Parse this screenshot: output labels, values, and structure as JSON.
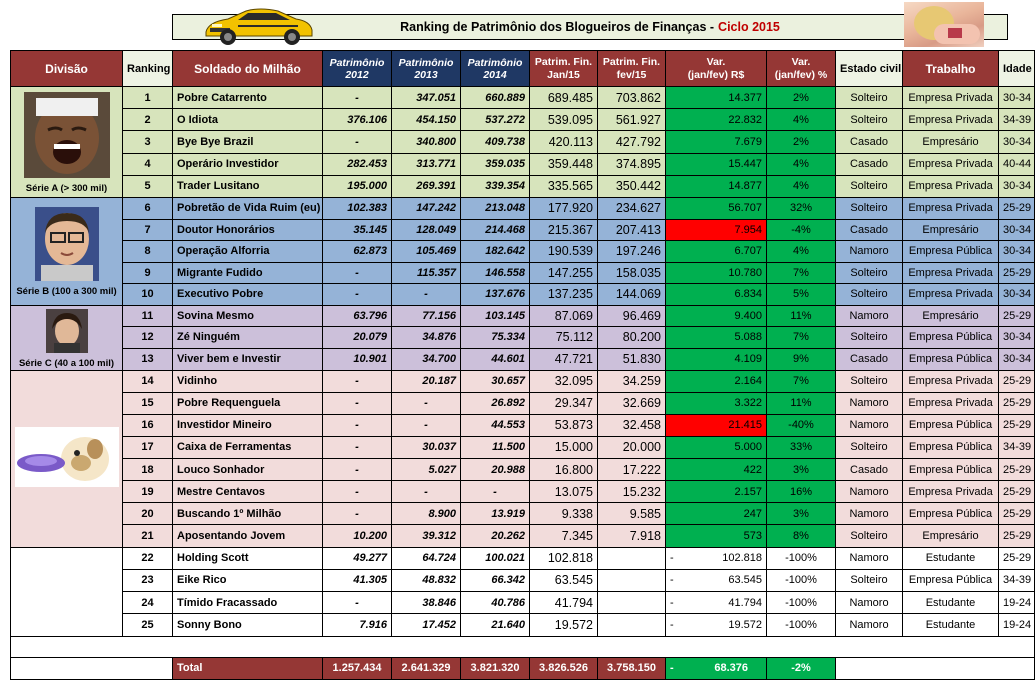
{
  "title": {
    "main": "Ranking de Patrimônio dos Blogueiros de Finanças -",
    "accent": "Ciclo 2015"
  },
  "images": {
    "car": "yellow-sports-car",
    "woman": "woman-photo"
  },
  "headers": {
    "divisao": "Divisão",
    "ranking": "Ranking",
    "soldado": "Soldado do Milhão",
    "p2012a": "Patrimônio",
    "p2012b": "2012",
    "p2013a": "Patrimônio",
    "p2013b": "2013",
    "p2014a": "Patrimônio",
    "p2014b": "2014",
    "janA": "Patrim. Fin.",
    "janB": "Jan/15",
    "fevA": "Patrim. Fin.",
    "fevB": "fev/15",
    "varRA": "Var.",
    "varRB": "(jan/fev) R$",
    "varPA": "Var.",
    "varPB": "(jan/fev) %",
    "estado": "Estado civil",
    "trabalho": "Trabalho",
    "idade": "Idade"
  },
  "divisions": {
    "a": "Série A (> 300 mil)",
    "b": "Série B (100 a 300 mil)",
    "c": "Série C (40 a 100 mil)",
    "d": "",
    "e": ""
  },
  "rows": [
    {
      "rank": "1",
      "name": "Pobre Catarrento",
      "p12": "-",
      "p13": "347.051",
      "p14": "660.889",
      "jan": "689.485",
      "fev": "703.862",
      "vr": "14.377",
      "vp": "2%",
      "civil": "Solteiro",
      "job": "Empresa Privada",
      "age": "30-34"
    },
    {
      "rank": "2",
      "name": "O Idiota",
      "p12": "376.106",
      "p13": "454.150",
      "p14": "537.272",
      "jan": "539.095",
      "fev": "561.927",
      "vr": "22.832",
      "vp": "4%",
      "civil": "Solteiro",
      "job": "Empresa Privada",
      "age": "34-39"
    },
    {
      "rank": "3",
      "name": "Bye Bye Brazil",
      "p12": "-",
      "p13": "340.800",
      "p14": "409.738",
      "jan": "420.113",
      "fev": "427.792",
      "vr": "7.679",
      "vp": "2%",
      "civil": "Casado",
      "job": "Empresário",
      "age": "30-34"
    },
    {
      "rank": "4",
      "name": "Operário Investidor",
      "p12": "282.453",
      "p13": "313.771",
      "p14": "359.035",
      "jan": "359.448",
      "fev": "374.895",
      "vr": "15.447",
      "vp": "4%",
      "civil": "Casado",
      "job": "Empresa Privada",
      "age": "40-44"
    },
    {
      "rank": "5",
      "name": "Trader Lusitano",
      "p12": "195.000",
      "p13": "269.391",
      "p14": "339.354",
      "jan": "335.565",
      "fev": "350.442",
      "vr": "14.877",
      "vp": "4%",
      "civil": "Solteiro",
      "job": "Empresa Privada",
      "age": "30-34"
    },
    {
      "rank": "6",
      "name": "Pobretão de Vida Ruim (eu)",
      "p12": "102.383",
      "p13": "147.242",
      "p14": "213.048",
      "jan": "177.920",
      "fev": "234.627",
      "vr": "56.707",
      "vp": "32%",
      "civil": "Solteiro",
      "job": "Empresa Privada",
      "age": "25-29"
    },
    {
      "rank": "7",
      "name": "Doutor Honorários",
      "p12": "35.145",
      "p13": "128.049",
      "p14": "214.468",
      "jan": "215.367",
      "fev": "207.413",
      "vr": "7.954",
      "vp": "-4%",
      "civil": "Casado",
      "job": "Empresário",
      "age": "30-34"
    },
    {
      "rank": "8",
      "name": "Operação Alforria",
      "p12": "62.873",
      "p13": "105.469",
      "p14": "182.642",
      "jan": "190.539",
      "fev": "197.246",
      "vr": "6.707",
      "vp": "4%",
      "civil": "Namoro",
      "job": "Empresa Pública",
      "age": "30-34"
    },
    {
      "rank": "9",
      "name": "Migrante Fudido",
      "p12": "-",
      "p13": "115.357",
      "p14": "146.558",
      "jan": "147.255",
      "fev": "158.035",
      "vr": "10.780",
      "vp": "7%",
      "civil": "Solteiro",
      "job": "Empresa Privada",
      "age": "25-29"
    },
    {
      "rank": "10",
      "name": "Executivo Pobre",
      "p12": "-",
      "p13": "-",
      "p14": "137.676",
      "jan": "137.235",
      "fev": "144.069",
      "vr": "6.834",
      "vp": "5%",
      "civil": "Solteiro",
      "job": "Empresa Privada",
      "age": "30-34"
    },
    {
      "rank": "11",
      "name": "Sovina Mesmo",
      "p12": "63.796",
      "p13": "77.156",
      "p14": "103.145",
      "jan": "87.069",
      "fev": "96.469",
      "vr": "9.400",
      "vp": "11%",
      "civil": "Namoro",
      "job": "Empresário",
      "age": "25-29"
    },
    {
      "rank": "12",
      "name": "Zé Ninguém",
      "p12": "20.079",
      "p13": "34.876",
      "p14": "75.334",
      "jan": "75.112",
      "fev": "80.200",
      "vr": "5.088",
      "vp": "7%",
      "civil": "Solteiro",
      "job": "Empresa Pública",
      "age": "30-34"
    },
    {
      "rank": "13",
      "name": "Viver bem e Investir",
      "p12": "10.901",
      "p13": "34.700",
      "p14": "44.601",
      "jan": "47.721",
      "fev": "51.830",
      "vr": "4.109",
      "vp": "9%",
      "civil": "Casado",
      "job": "Empresa Pública",
      "age": "30-34"
    },
    {
      "rank": "14",
      "name": "Vidinho",
      "p12": "-",
      "p13": "20.187",
      "p14": "30.657",
      "jan": "32.095",
      "fev": "34.259",
      "vr": "2.164",
      "vp": "7%",
      "civil": "Solteiro",
      "job": "Empresa Privada",
      "age": "25-29"
    },
    {
      "rank": "15",
      "name": "Pobre Requenguela",
      "p12": "-",
      "p13": "-",
      "p14": "26.892",
      "jan": "29.347",
      "fev": "32.669",
      "vr": "3.322",
      "vp": "11%",
      "civil": "Namoro",
      "job": "Empresa Privada",
      "age": "25-29"
    },
    {
      "rank": "16",
      "name": "Investidor Mineiro",
      "p12": "-",
      "p13": "-",
      "p14": "44.553",
      "jan": "53.873",
      "fev": "32.458",
      "vr": "21.415",
      "vp": "-40%",
      "civil": "Namoro",
      "job": "Empresa Pública",
      "age": "25-29"
    },
    {
      "rank": "17",
      "name": "Caixa de Ferramentas",
      "p12": "-",
      "p13": "30.037",
      "p14": "11.500",
      "jan": "15.000",
      "fev": "20.000",
      "vr": "5.000",
      "vp": "33%",
      "civil": "Solteiro",
      "job": "Empresa Pública",
      "age": "34-39"
    },
    {
      "rank": "18",
      "name": "Louco Sonhador",
      "p12": "-",
      "p13": "5.027",
      "p14": "20.988",
      "jan": "16.800",
      "fev": "17.222",
      "vr": "422",
      "vp": "3%",
      "civil": "Casado",
      "job": "Empresa Pública",
      "age": "25-29"
    },
    {
      "rank": "19",
      "name": "Mestre Centavos",
      "p12": "-",
      "p13": "-",
      "p14": "-",
      "jan": "13.075",
      "fev": "15.232",
      "vr": "2.157",
      "vp": "16%",
      "civil": "Namoro",
      "job": "Empresa Privada",
      "age": "25-29"
    },
    {
      "rank": "20",
      "name": "Buscando 1º Milhão",
      "p12": "-",
      "p13": "8.900",
      "p14": "13.919",
      "jan": "9.338",
      "fev": "9.585",
      "vr": "247",
      "vp": "3%",
      "civil": "Namoro",
      "job": "Empresa Pública",
      "age": "25-29"
    },
    {
      "rank": "21",
      "name": "Aposentando Jovem",
      "p12": "10.200",
      "p13": "39.312",
      "p14": "20.262",
      "jan": "7.345",
      "fev": "7.918",
      "vr": "573",
      "vp": "8%",
      "civil": "Solteiro",
      "job": "Empresário",
      "age": "25-29"
    },
    {
      "rank": "22",
      "name": "Holding Scott",
      "p12": "49.277",
      "p13": "64.724",
      "p14": "100.021",
      "jan": "102.818",
      "fev": "",
      "vr": "102.818",
      "vp": "-100%",
      "civil": "Namoro",
      "job": "Estudante",
      "age": "25-29"
    },
    {
      "rank": "23",
      "name": "Eike Rico",
      "p12": "41.305",
      "p13": "48.832",
      "p14": "66.342",
      "jan": "63.545",
      "fev": "",
      "vr": "63.545",
      "vp": "-100%",
      "civil": "Solteiro",
      "job": "Empresa Pública",
      "age": "34-39"
    },
    {
      "rank": "24",
      "name": "Tímido Fracassado",
      "p12": "-",
      "p13": "38.846",
      "p14": "40.786",
      "jan": "41.794",
      "fev": "",
      "vr": "41.794",
      "vp": "-100%",
      "civil": "Namoro",
      "job": "Estudante",
      "age": "19-24"
    },
    {
      "rank": "25",
      "name": "Sonny Bono",
      "p12": "7.916",
      "p13": "17.452",
      "p14": "21.640",
      "jan": "19.572",
      "fev": "",
      "vr": "19.572",
      "vp": "-100%",
      "civil": "Namoro",
      "job": "Estudante",
      "age": "19-24"
    }
  ],
  "total": {
    "label": "Total",
    "p12": "1.257.434",
    "p13": "2.641.329",
    "p14": "3.821.320",
    "jan": "3.826.526",
    "fev": "3.758.150",
    "dash": "-",
    "vr": "68.376",
    "vp": "-2%"
  },
  "colors": {
    "header_red": "#953735",
    "header_navy": "#1f3864",
    "serie_a": "#d7e4bc",
    "serie_b": "#95b3d7",
    "serie_c": "#ccc0da",
    "serie_d": "#f2dcdb",
    "var_positive": "#00b050",
    "var_negative": "#ff0000",
    "title_accent": "#c00000"
  }
}
